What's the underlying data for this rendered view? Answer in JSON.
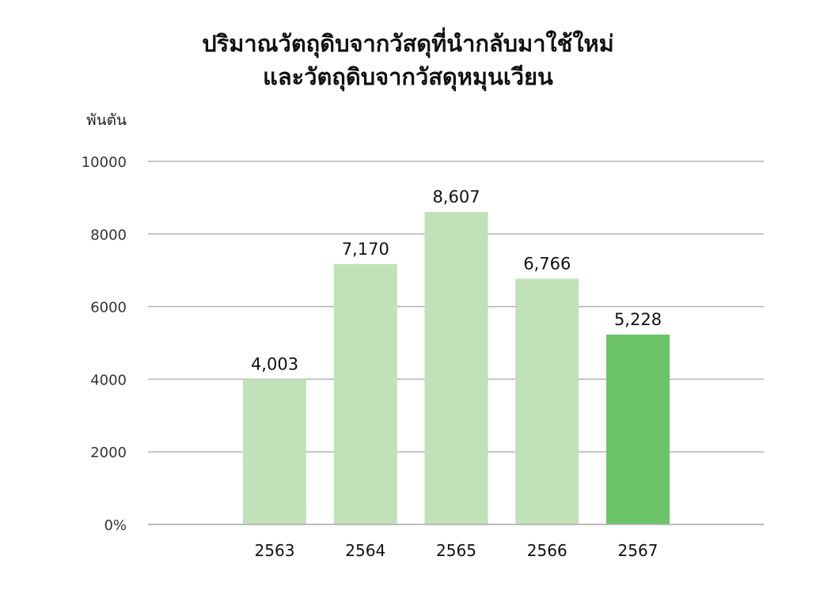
{
  "chart_data": {
    "type": "bar",
    "title": [
      "ปริมาณวัตถุดิบจากวัสดุที่นำกลับมาใช้ใหม่",
      "และวัตถุดิบจากวัสดุหมุนเวียน"
    ],
    "ylabel": "พันตัน",
    "xlabel": "",
    "categories": [
      "2563",
      "2564",
      "2565",
      "2566",
      "2567"
    ],
    "values": [
      4003,
      7170,
      8607,
      6766,
      5228
    ],
    "data_labels": [
      "4,003",
      "7,170",
      "8,607",
      "6,766",
      "5,228"
    ],
    "ylim": [
      0,
      10000
    ],
    "yticks": [
      0,
      2000,
      4000,
      6000,
      8000,
      10000
    ],
    "ytick_labels": [
      "0%",
      "2000",
      "4000",
      "6000",
      "8000",
      "10000"
    ],
    "grid": true,
    "legend": "none",
    "colors": {
      "bar": "#c1e1b8",
      "highlight": "#6cc266",
      "grid": "#b3b3b3"
    },
    "highlight_index": 4
  }
}
